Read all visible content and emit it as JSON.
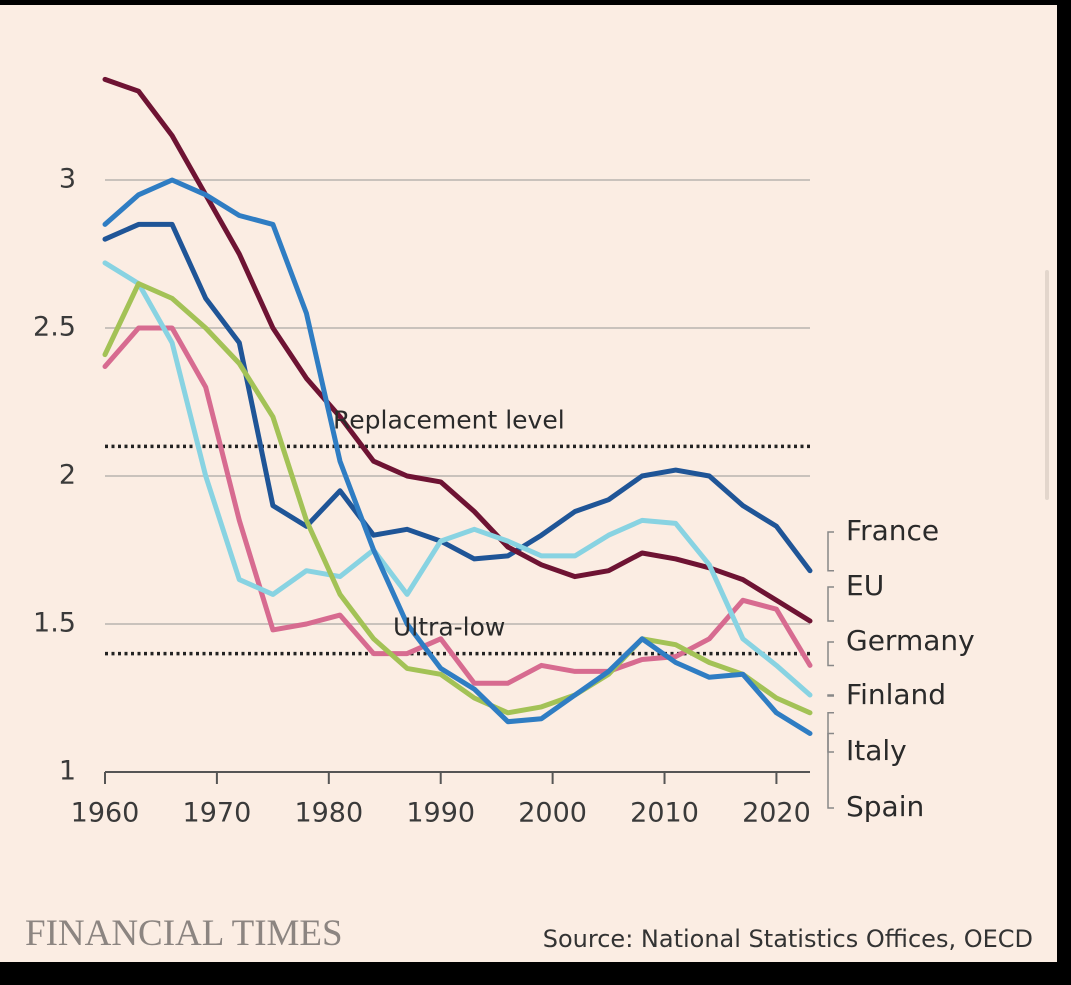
{
  "chart_data": {
    "type": "line",
    "source": "Source: National Statistics Offices, OECD",
    "brand": "FINANCIAL TIMES",
    "x": [
      1960,
      1963,
      1966,
      1969,
      1972,
      1975,
      1978,
      1981,
      1984,
      1987,
      1990,
      1993,
      1996,
      1999,
      2002,
      2005,
      2008,
      2011,
      2014,
      2017,
      2020,
      2023
    ],
    "xlim": [
      1960,
      2023
    ],
    "xticks": [
      1960,
      1970,
      1980,
      1990,
      2000,
      2010,
      2020
    ],
    "ylim": [
      1,
      3.4
    ],
    "yticks": [
      1,
      1.5,
      2,
      2.5,
      3
    ],
    "grid": true,
    "reference_lines": [
      {
        "value": 2.1,
        "label": "Replacement level"
      },
      {
        "value": 1.4,
        "label": "Ultra-low"
      }
    ],
    "series": [
      {
        "name": "France",
        "color": "#1f5597",
        "values": [
          2.8,
          2.85,
          2.85,
          2.6,
          2.45,
          1.9,
          1.83,
          1.95,
          1.8,
          1.82,
          1.78,
          1.72,
          1.73,
          1.8,
          1.88,
          1.92,
          2.0,
          2.02,
          2.0,
          1.9,
          1.83,
          1.68
        ]
      },
      {
        "name": "EU",
        "color": "#6e1333",
        "values": [
          3.34,
          3.3,
          3.15,
          2.95,
          2.75,
          2.5,
          2.33,
          2.2,
          2.05,
          2.0,
          1.98,
          1.88,
          1.76,
          1.7,
          1.66,
          1.68,
          1.74,
          1.72,
          1.69,
          1.65,
          1.58,
          1.51
        ]
      },
      {
        "name": "Germany",
        "color": "#d76b90",
        "values": [
          2.37,
          2.5,
          2.5,
          2.3,
          1.85,
          1.48,
          1.5,
          1.53,
          1.4,
          1.4,
          1.45,
          1.3,
          1.3,
          1.36,
          1.34,
          1.34,
          1.38,
          1.39,
          1.45,
          1.58,
          1.55,
          1.36
        ]
      },
      {
        "name": "Finland",
        "color": "#88d3e2",
        "values": [
          2.72,
          2.65,
          2.45,
          2.0,
          1.65,
          1.6,
          1.68,
          1.66,
          1.75,
          1.6,
          1.78,
          1.82,
          1.78,
          1.73,
          1.73,
          1.8,
          1.85,
          1.84,
          1.7,
          1.45,
          1.36,
          1.26
        ]
      },
      {
        "name": "Italy",
        "color": "#a3c256",
        "values": [
          2.41,
          2.65,
          2.6,
          2.5,
          2.38,
          2.2,
          1.85,
          1.6,
          1.45,
          1.35,
          1.33,
          1.25,
          1.2,
          1.22,
          1.26,
          1.33,
          1.45,
          1.43,
          1.37,
          1.33,
          1.25,
          1.2
        ]
      },
      {
        "name": "Spain",
        "color": "#2f7dc3",
        "values": [
          2.85,
          2.95,
          3.0,
          2.95,
          2.88,
          2.85,
          2.55,
          2.05,
          1.75,
          1.5,
          1.35,
          1.28,
          1.17,
          1.18,
          1.26,
          1.34,
          1.45,
          1.37,
          1.32,
          1.33,
          1.2,
          1.13
        ]
      }
    ]
  }
}
